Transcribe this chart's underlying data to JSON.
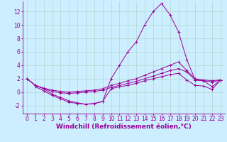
{
  "background_color": "#cceeff",
  "grid_color": "#b0d8cc",
  "line_color": "#990099",
  "marker": "+",
  "xlabel": "Windchill (Refroidissement éolien,°C)",
  "xlabel_fontsize": 6.5,
  "tick_fontsize": 5.5,
  "xlim": [
    -0.5,
    23.5
  ],
  "ylim": [
    -3.2,
    13.5
  ],
  "yticks": [
    -2,
    0,
    2,
    4,
    6,
    8,
    10,
    12
  ],
  "xticks": [
    0,
    1,
    2,
    3,
    4,
    5,
    6,
    7,
    8,
    9,
    10,
    11,
    12,
    13,
    14,
    15,
    16,
    17,
    18,
    19,
    20,
    21,
    22,
    23
  ],
  "series": [
    {
      "x": [
        0,
        1,
        2,
        3,
        4,
        5,
        6,
        7,
        8,
        9,
        10,
        11,
        12,
        13,
        14,
        15,
        16,
        17,
        18,
        19,
        20,
        21,
        22,
        23
      ],
      "y": [
        2.0,
        1.0,
        0.5,
        -0.3,
        -0.8,
        -1.3,
        -1.6,
        -1.8,
        -1.7,
        -1.4,
        2.0,
        4.0,
        6.0,
        7.5,
        10.0,
        12.0,
        13.2,
        11.5,
        9.0,
        4.8,
        1.8,
        1.7,
        0.8,
        1.8
      ]
    },
    {
      "x": [
        0,
        1,
        2,
        3,
        4,
        5,
        6,
        7,
        8,
        9,
        10,
        11,
        12,
        13,
        14,
        15,
        16,
        17,
        18,
        19,
        20,
        21,
        22,
        23
      ],
      "y": [
        2.0,
        1.0,
        0.6,
        0.3,
        0.1,
        0.0,
        0.1,
        0.2,
        0.3,
        0.5,
        1.0,
        1.3,
        1.7,
        2.0,
        2.5,
        3.0,
        3.5,
        4.0,
        4.5,
        3.2,
        2.0,
        1.8,
        1.7,
        1.8
      ]
    },
    {
      "x": [
        0,
        1,
        2,
        3,
        4,
        5,
        6,
        7,
        8,
        9,
        10,
        11,
        12,
        13,
        14,
        15,
        16,
        17,
        18,
        19,
        20,
        21,
        22,
        23
      ],
      "y": [
        2.0,
        1.0,
        0.5,
        0.1,
        -0.1,
        -0.2,
        -0.1,
        0.0,
        0.1,
        0.3,
        0.7,
        1.0,
        1.3,
        1.6,
        2.0,
        2.4,
        2.8,
        3.2,
        3.5,
        3.0,
        1.8,
        1.7,
        1.5,
        1.8
      ]
    },
    {
      "x": [
        1,
        2,
        3,
        4,
        5,
        6,
        7,
        8,
        9,
        10,
        11,
        12,
        13,
        14,
        15,
        16,
        17,
        18,
        19,
        20,
        21,
        22,
        23
      ],
      "y": [
        0.8,
        0.2,
        -0.5,
        -1.0,
        -1.5,
        -1.7,
        -1.8,
        -1.7,
        -1.4,
        0.5,
        0.8,
        1.0,
        1.3,
        1.7,
        2.0,
        2.3,
        2.6,
        2.8,
        1.8,
        1.0,
        0.9,
        0.4,
        1.8
      ]
    }
  ]
}
